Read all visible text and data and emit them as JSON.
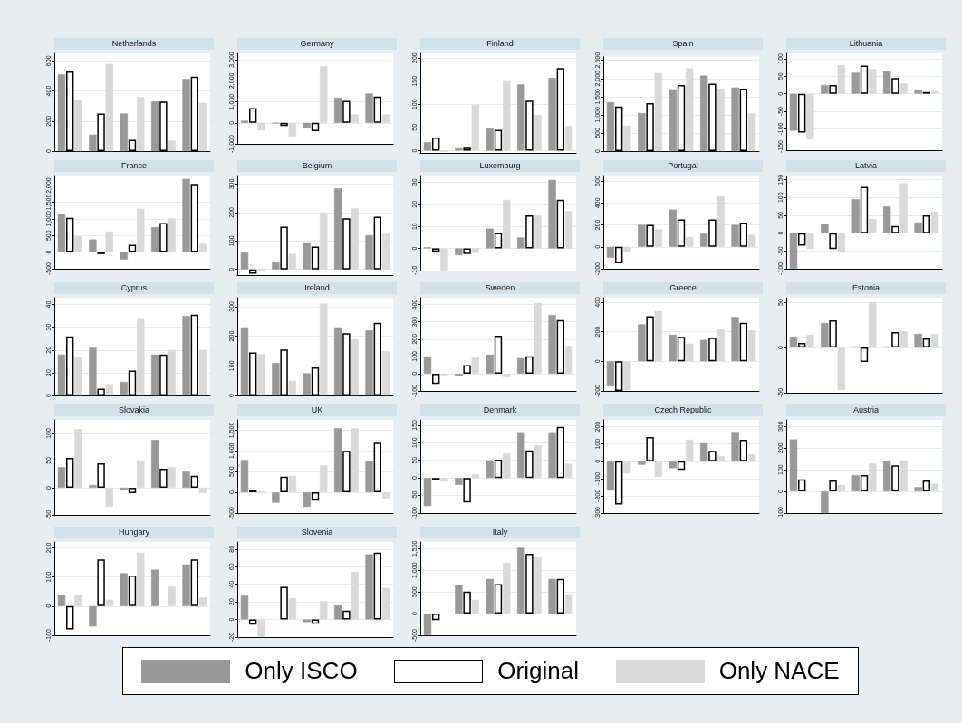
{
  "chart_data": [
    {
      "type": "bar",
      "title": "Netherlands",
      "categories": [
        null,
        null,
        null,
        null,
        null
      ],
      "ylim": [
        0,
        650
      ],
      "yticks": [
        0,
        200,
        400,
        600
      ],
      "grid": "y",
      "legend": "bottom",
      "series": [
        {
          "name": "Only ISCO",
          "color": "#999999",
          "values": [
            510,
            110,
            250,
            330,
            480
          ]
        },
        {
          "name": "Original",
          "color": "#ffffff",
          "values": [
            530,
            250,
            75,
            330,
            495
          ]
        },
        {
          "name": "Only NACE",
          "color": "#d9d9d9",
          "values": [
            340,
            580,
            360,
            70,
            320
          ]
        }
      ]
    },
    {
      "type": "bar",
      "title": "Germany",
      "categories": [
        null,
        null,
        null,
        null,
        null
      ],
      "ylim": [
        -1000,
        3300
      ],
      "yticks": [
        {
          "value": -1000,
          "label": "-1,000"
        },
        0,
        {
          "value": 1000,
          "label": "1,000"
        },
        {
          "value": 2000,
          "label": "2,000"
        },
        {
          "value": 3000,
          "label": "3,000"
        }
      ],
      "grid": "y",
      "series": [
        {
          "color": "#999999",
          "values": [
            100,
            -20,
            -250,
            1200,
            1400
          ]
        },
        {
          "color": "#ffffff",
          "values": [
            700,
            -150,
            -400,
            1050,
            1250
          ]
        },
        {
          "color": "#d9d9d9",
          "values": [
            -350,
            -650,
            2700,
            400,
            400
          ]
        }
      ]
    },
    {
      "type": "bar",
      "title": "Finland",
      "categories": [
        null,
        null,
        null,
        null,
        null
      ],
      "ylim": [
        -5,
        210
      ],
      "yticks": [
        0,
        50,
        100,
        150,
        200
      ],
      "grid": "y",
      "series": [
        {
          "color": "#999999",
          "values": [
            18,
            5,
            48,
            143,
            157
          ]
        },
        {
          "color": "#ffffff",
          "values": [
            28,
            6,
            45,
            108,
            178
          ]
        },
        {
          "color": "#d9d9d9",
          "values": [
            -3,
            99,
            152,
            77,
            53
          ]
        }
      ]
    },
    {
      "type": "bar",
      "title": "Spain",
      "categories": [
        null,
        null,
        null,
        null,
        null
      ],
      "ylim": [
        0,
        2600
      ],
      "yticks": [
        0,
        500,
        {
          "value": 1000,
          "label": "1,000"
        },
        {
          "value": 1500,
          "label": "1,500"
        },
        {
          "value": 2000,
          "label": "2,000"
        },
        {
          "value": 2500,
          "label": "2,500"
        }
      ],
      "grid": "y",
      "series": [
        {
          "color": "#999999",
          "values": [
            1350,
            1050,
            1700,
            2080,
            1750
          ]
        },
        {
          "color": "#ffffff",
          "values": [
            1230,
            1320,
            1820,
            1860,
            1720
          ]
        },
        {
          "color": "#d9d9d9",
          "values": [
            700,
            2150,
            2280,
            1720,
            1040
          ]
        }
      ]
    },
    {
      "type": "bar",
      "title": "Lithuania",
      "categories": [
        null,
        null,
        null,
        null,
        null
      ],
      "ylim": [
        -160,
        115
      ],
      "yticks": [
        -150,
        -100,
        -50,
        0,
        50,
        100
      ],
      "grid": "y",
      "series": [
        {
          "color": "#999999",
          "values": [
            -105,
            25,
            60,
            65,
            12
          ]
        },
        {
          "color": "#ffffff",
          "values": [
            -110,
            25,
            80,
            45,
            5
          ]
        },
        {
          "color": "#d9d9d9",
          "values": [
            -130,
            82,
            70,
            30,
            8
          ]
        }
      ]
    },
    {
      "type": "bar",
      "title": "France",
      "categories": [
        null,
        null,
        null,
        null,
        null
      ],
      "ylim": [
        -500,
        2300
      ],
      "yticks": [
        -500,
        0,
        500,
        {
          "value": 1000,
          "label": "1,000"
        },
        {
          "value": 1500,
          "label": "1,500"
        },
        {
          "value": 2000,
          "label": "2,000"
        }
      ],
      "grid": "y",
      "series": [
        {
          "color": "#999999",
          "values": [
            1150,
            380,
            -220,
            750,
            2200
          ]
        },
        {
          "color": "#ffffff",
          "values": [
            1030,
            -60,
            220,
            870,
            2050
          ]
        },
        {
          "color": "#d9d9d9",
          "values": [
            480,
            620,
            1300,
            1020,
            250
          ]
        }
      ]
    },
    {
      "type": "bar",
      "title": "Belgium",
      "categories": [
        null,
        null,
        null,
        null,
        null
      ],
      "ylim": [
        -20,
        330
      ],
      "yticks": [
        0,
        100,
        200,
        300
      ],
      "grid": "y",
      "series": [
        {
          "color": "#999999",
          "values": [
            60,
            25,
            95,
            285,
            120
          ]
        },
        {
          "color": "#ffffff",
          "values": [
            -15,
            150,
            80,
            180,
            185
          ]
        },
        {
          "color": "#d9d9d9",
          "values": [
            -5,
            55,
            200,
            215,
            125
          ]
        }
      ]
    },
    {
      "type": "bar",
      "title": "Luxemburg",
      "categories": [
        null,
        null,
        null,
        null,
        null
      ],
      "ylim": [
        -10,
        33
      ],
      "yticks": [
        -10,
        0,
        10,
        20,
        30
      ],
      "grid": "y",
      "series": [
        {
          "color": "#999999",
          "values": [
            0.5,
            -3,
            9,
            5,
            31
          ]
        },
        {
          "color": "#ffffff",
          "values": [
            -1.5,
            -2.5,
            7,
            15,
            22
          ]
        },
        {
          "color": "#d9d9d9",
          "values": [
            -10,
            -2,
            22,
            15,
            17
          ]
        }
      ]
    },
    {
      "type": "bar",
      "title": "Portugal",
      "categories": [
        null,
        null,
        null,
        null,
        null
      ],
      "ylim": [
        -200,
        650
      ],
      "yticks": [
        -200,
        0,
        200,
        400,
        600
      ],
      "grid": "y",
      "series": [
        {
          "color": "#999999",
          "values": [
            -100,
            200,
            340,
            120,
            200
          ]
        },
        {
          "color": "#ffffff",
          "values": [
            -150,
            200,
            250,
            250,
            220
          ]
        },
        {
          "color": "#d9d9d9",
          "values": [
            -50,
            160,
            90,
            460,
            110
          ]
        }
      ]
    },
    {
      "type": "bar",
      "title": "Latvia",
      "categories": [
        null,
        null,
        null,
        null,
        null
      ],
      "ylim": [
        -100,
        160
      ],
      "yticks": [
        -100,
        -50,
        0,
        50,
        100,
        150
      ],
      "grid": "y",
      "series": [
        {
          "color": "#999999",
          "values": [
            -100,
            25,
            95,
            75,
            30
          ]
        },
        {
          "color": "#ffffff",
          "values": [
            -35,
            -45,
            130,
            20,
            50
          ]
        },
        {
          "color": "#d9d9d9",
          "values": [
            -45,
            -55,
            40,
            140,
            60
          ]
        }
      ]
    },
    {
      "type": "bar",
      "title": "Cyprus",
      "categories": [
        null,
        null,
        null,
        null,
        null
      ],
      "ylim": [
        0,
        43
      ],
      "yticks": [
        0,
        10,
        20,
        30,
        40
      ],
      "grid": "y",
      "series": [
        {
          "color": "#999999",
          "values": [
            18,
            21,
            6,
            18,
            35
          ]
        },
        {
          "color": "#ffffff",
          "values": [
            26,
            3,
            11,
            18,
            35.5
          ]
        },
        {
          "color": "#d9d9d9",
          "values": [
            17,
            5,
            34,
            20,
            20
          ]
        }
      ]
    },
    {
      "type": "bar",
      "title": "Ireland",
      "categories": [
        null,
        null,
        null,
        null,
        null
      ],
      "ylim": [
        0,
        330
      ],
      "yticks": [
        0,
        100,
        200,
        300
      ],
      "grid": "y",
      "series": [
        {
          "color": "#999999",
          "values": [
            230,
            110,
            75,
            230,
            220
          ]
        },
        {
          "color": "#ffffff",
          "values": [
            145,
            155,
            95,
            210,
            245
          ]
        },
        {
          "color": "#d9d9d9",
          "values": [
            140,
            50,
            310,
            190,
            150
          ]
        }
      ]
    },
    {
      "type": "bar",
      "title": "Sweden",
      "categories": [
        null,
        null,
        null,
        null,
        null
      ],
      "ylim": [
        -100,
        440
      ],
      "yticks": [
        -100,
        0,
        100,
        200,
        300,
        400
      ],
      "grid": "y",
      "series": [
        {
          "color": "#999999",
          "values": [
            100,
            -15,
            110,
            90,
            340
          ]
        },
        {
          "color": "#ffffff",
          "values": [
            -60,
            50,
            220,
            100,
            310
          ]
        },
        {
          "color": "#d9d9d9",
          "values": [
            -10,
            95,
            -20,
            410,
            160
          ]
        }
      ]
    },
    {
      "type": "bar",
      "title": "Greece",
      "categories": [
        null,
        null,
        null,
        null,
        null
      ],
      "ylim": [
        -200,
        430
      ],
      "yticks": [
        -200,
        0,
        200,
        400
      ],
      "grid": "y",
      "series": [
        {
          "color": "#999999",
          "values": [
            -170,
            250,
            180,
            145,
            300
          ]
        },
        {
          "color": "#ffffff",
          "values": [
            -200,
            305,
            165,
            160,
            260
          ]
        },
        {
          "color": "#d9d9d9",
          "values": [
            -195,
            340,
            120,
            215,
            210
          ]
        }
      ]
    },
    {
      "type": "bar",
      "title": "Estonia",
      "categories": [
        null,
        null,
        null,
        null,
        null
      ],
      "ylim": [
        -50,
        55
      ],
      "yticks": [
        -50,
        0,
        50
      ],
      "grid": "y",
      "series": [
        {
          "color": "#999999",
          "values": [
            12,
            27,
            1,
            1,
            15
          ]
        },
        {
          "color": "#ffffff",
          "values": [
            5,
            30,
            -16,
            17,
            10
          ]
        },
        {
          "color": "#d9d9d9",
          "values": [
            14,
            -47,
            50,
            18,
            15
          ]
        }
      ]
    },
    {
      "type": "bar",
      "title": "Slovakia",
      "categories": [
        null,
        null,
        null,
        null,
        null
      ],
      "ylim": [
        -50,
        125
      ],
      "yticks": [
        -50,
        0,
        50,
        100
      ],
      "grid": "y",
      "series": [
        {
          "color": "#999999",
          "values": [
            38,
            5,
            -5,
            88,
            30
          ]
        },
        {
          "color": "#ffffff",
          "values": [
            55,
            45,
            -10,
            35,
            22
          ]
        },
        {
          "color": "#d9d9d9",
          "values": [
            108,
            -35,
            50,
            38,
            -10
          ]
        }
      ]
    },
    {
      "type": "bar",
      "title": "UK",
      "categories": [
        null,
        null,
        null,
        null,
        null
      ],
      "ylim": [
        -500,
        1750
      ],
      "yticks": [
        -500,
        0,
        500,
        {
          "value": 1000,
          "label": "1,000"
        },
        {
          "value": 1500,
          "label": "1,500"
        }
      ],
      "grid": "y",
      "series": [
        {
          "color": "#999999",
          "values": [
            780,
            -250,
            -350,
            1550,
            750
          ]
        },
        {
          "color": "#ffffff",
          "values": [
            70,
            380,
            -200,
            1000,
            1200
          ]
        },
        {
          "color": "#d9d9d9",
          "values": [
            20,
            400,
            650,
            1550,
            -150
          ]
        }
      ]
    },
    {
      "type": "bar",
      "title": "Denmark",
      "categories": [
        null,
        null,
        null,
        null,
        null
      ],
      "ylim": [
        -100,
        165
      ],
      "yticks": [
        -100,
        -50,
        0,
        50,
        100,
        150
      ],
      "grid": "y",
      "series": [
        {
          "color": "#999999",
          "values": [
            -80,
            -20,
            50,
            130,
            130
          ]
        },
        {
          "color": "#ffffff",
          "values": [
            -5,
            -70,
            52,
            78,
            145
          ]
        },
        {
          "color": "#d9d9d9",
          "values": [
            -10,
            10,
            70,
            93,
            40
          ]
        }
      ]
    },
    {
      "type": "bar",
      "title": "Czech Republic",
      "categories": [
        null,
        null,
        null,
        null,
        null
      ],
      "ylim": [
        -300,
        240
      ],
      "yticks": [
        -300,
        -200,
        -100,
        0,
        100,
        200
      ],
      "grid": "y",
      "series": [
        {
          "color": "#999999",
          "values": [
            -170,
            -20,
            -40,
            105,
            170
          ]
        },
        {
          "color": "#ffffff",
          "values": [
            -250,
            140,
            -50,
            60,
            125
          ]
        },
        {
          "color": "#d9d9d9",
          "values": [
            -70,
            -90,
            125,
            30,
            40
          ]
        }
      ]
    },
    {
      "type": "bar",
      "title": "Austria",
      "categories": [
        null,
        null,
        null,
        null,
        null
      ],
      "ylim": [
        -100,
        330
      ],
      "yticks": [
        -100,
        0,
        100,
        200,
        300
      ],
      "grid": "y",
      "series": [
        {
          "color": "#999999",
          "values": [
            240,
            -100,
            75,
            140,
            20
          ]
        },
        {
          "color": "#ffffff",
          "values": [
            55,
            50,
            75,
            120,
            50
          ]
        },
        {
          "color": "#d9d9d9",
          "values": [
            null,
            30,
            130,
            140,
            35
          ]
        }
      ]
    },
    {
      "type": "bar",
      "title": "Hungary",
      "categories": [
        null,
        null,
        null,
        null,
        null
      ],
      "ylim": [
        -100,
        220
      ],
      "yticks": [
        -100,
        0,
        100,
        200
      ],
      "grid": "y",
      "series": [
        {
          "color": "#999999",
          "values": [
            38,
            -70,
            113,
            125,
            143
          ]
        },
        {
          "color": "#ffffff",
          "values": [
            -80,
            160,
            105,
            null,
            160
          ]
        },
        {
          "color": "#d9d9d9",
          "values": [
            38,
            22,
            183,
            68,
            30
          ]
        }
      ]
    },
    {
      "type": "bar",
      "title": "Slovenia",
      "categories": [
        null,
        null,
        null,
        null,
        null
      ],
      "ylim": [
        -20,
        88
      ],
      "yticks": [
        -20,
        0,
        20,
        40,
        60,
        80
      ],
      "grid": "y",
      "series": [
        {
          "color": "#999999",
          "values": [
            27,
            null,
            -3,
            16,
            74
          ]
        },
        {
          "color": "#ffffff",
          "values": [
            -6,
            37,
            -5,
            10,
            76
          ]
        },
        {
          "color": "#d9d9d9",
          "values": [
            -20,
            24,
            21,
            54,
            36
          ]
        }
      ]
    },
    {
      "type": "bar",
      "title": "Italy",
      "categories": [
        null,
        null,
        null,
        null,
        null
      ],
      "ylim": [
        -500,
        1650
      ],
      "yticks": [
        -500,
        0,
        500,
        {
          "value": 1000,
          "label": "1,000"
        },
        {
          "value": 1500,
          "label": "1,500"
        }
      ],
      "grid": "y",
      "series": [
        {
          "color": "#999999",
          "values": [
            -500,
            660,
            800,
            1520,
            800
          ]
        },
        {
          "color": "#ffffff",
          "values": [
            -150,
            510,
            680,
            1380,
            800
          ]
        },
        {
          "color": "#d9d9d9",
          "values": [
            null,
            320,
            1170,
            1310,
            450
          ]
        }
      ]
    }
  ]
}
